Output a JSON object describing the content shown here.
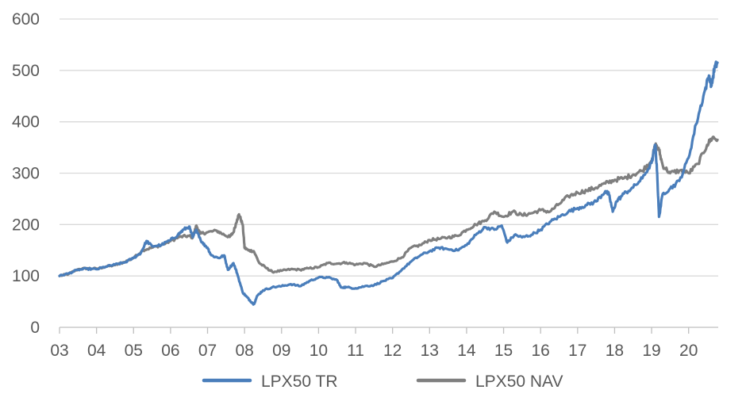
{
  "chart_data": {
    "type": "line",
    "title": "",
    "xlabel": "",
    "ylabel": "",
    "ylim": [
      0,
      600
    ],
    "yticks": [
      0,
      100,
      200,
      300,
      400,
      500,
      600
    ],
    "xlim": [
      2003,
      2020.8
    ],
    "xticks": [
      {
        "x": 2003,
        "label": "03"
      },
      {
        "x": 2004,
        "label": "04"
      },
      {
        "x": 2005,
        "label": "05"
      },
      {
        "x": 2006,
        "label": "06"
      },
      {
        "x": 2007,
        "label": "07"
      },
      {
        "x": 2008,
        "label": "08"
      },
      {
        "x": 2009,
        "label": "09"
      },
      {
        "x": 2010,
        "label": "10"
      },
      {
        "x": 2011,
        "label": "11"
      },
      {
        "x": 2012,
        "label": "12"
      },
      {
        "x": 2013,
        "label": "13"
      },
      {
        "x": 2014,
        "label": "14"
      },
      {
        "x": 2015,
        "label": "15"
      },
      {
        "x": 2016,
        "label": "16"
      },
      {
        "x": 2017,
        "label": "17"
      },
      {
        "x": 2018,
        "label": "18"
      },
      {
        "x": 2019,
        "label": "19"
      },
      {
        "x": 2020,
        "label": "20"
      }
    ],
    "grid": true,
    "legend": "bottom",
    "series": [
      {
        "name": "LPX50 TR",
        "color": "#4a7ebb",
        "points": [
          [
            2003.0,
            100
          ],
          [
            2003.25,
            105
          ],
          [
            2003.5,
            112
          ],
          [
            2003.75,
            114
          ],
          [
            2004.0,
            113
          ],
          [
            2004.25,
            118
          ],
          [
            2004.5,
            122
          ],
          [
            2004.75,
            126
          ],
          [
            2005.0,
            135
          ],
          [
            2005.2,
            145
          ],
          [
            2005.35,
            168
          ],
          [
            2005.5,
            158
          ],
          [
            2005.75,
            160
          ],
          [
            2006.0,
            170
          ],
          [
            2006.2,
            180
          ],
          [
            2006.35,
            190
          ],
          [
            2006.5,
            196
          ],
          [
            2006.6,
            175
          ],
          [
            2006.7,
            190
          ],
          [
            2006.85,
            165
          ],
          [
            2007.0,
            155
          ],
          [
            2007.1,
            140
          ],
          [
            2007.3,
            135
          ],
          [
            2007.45,
            140
          ],
          [
            2007.55,
            112
          ],
          [
            2007.7,
            125
          ],
          [
            2007.8,
            105
          ],
          [
            2007.95,
            68
          ],
          [
            2008.05,
            60
          ],
          [
            2008.15,
            52
          ],
          [
            2008.25,
            45
          ],
          [
            2008.35,
            62
          ],
          [
            2008.5,
            72
          ],
          [
            2008.75,
            78
          ],
          [
            2009.0,
            80
          ],
          [
            2009.25,
            84
          ],
          [
            2009.5,
            80
          ],
          [
            2009.75,
            90
          ],
          [
            2010.0,
            97
          ],
          [
            2010.25,
            97
          ],
          [
            2010.5,
            92
          ],
          [
            2010.6,
            78
          ],
          [
            2010.75,
            78
          ],
          [
            2011.0,
            76
          ],
          [
            2011.25,
            80
          ],
          [
            2011.5,
            82
          ],
          [
            2011.75,
            90
          ],
          [
            2012.0,
            96
          ],
          [
            2012.25,
            112
          ],
          [
            2012.5,
            128
          ],
          [
            2012.75,
            140
          ],
          [
            2013.0,
            148
          ],
          [
            2013.25,
            155
          ],
          [
            2013.5,
            152
          ],
          [
            2013.75,
            150
          ],
          [
            2014.0,
            160
          ],
          [
            2014.25,
            180
          ],
          [
            2014.5,
            195
          ],
          [
            2014.75,
            190
          ],
          [
            2014.95,
            198
          ],
          [
            2015.1,
            165
          ],
          [
            2015.3,
            180
          ],
          [
            2015.5,
            175
          ],
          [
            2015.75,
            180
          ],
          [
            2016.0,
            190
          ],
          [
            2016.25,
            205
          ],
          [
            2016.5,
            215
          ],
          [
            2016.75,
            225
          ],
          [
            2017.0,
            232
          ],
          [
            2017.25,
            238
          ],
          [
            2017.5,
            245
          ],
          [
            2017.75,
            265
          ],
          [
            2017.85,
            258
          ],
          [
            2017.95,
            225
          ],
          [
            2018.05,
            245
          ],
          [
            2018.25,
            260
          ],
          [
            2018.5,
            272
          ],
          [
            2018.75,
            290
          ],
          [
            2019.0,
            320
          ],
          [
            2019.1,
            355
          ],
          [
            2019.15,
            300
          ],
          [
            2019.2,
            215
          ],
          [
            2019.3,
            260
          ],
          [
            2019.5,
            270
          ],
          [
            2019.75,
            285
          ],
          [
            2020.0,
            330
          ],
          [
            2020.2,
            395
          ],
          [
            2020.4,
            450
          ],
          [
            2020.55,
            490
          ],
          [
            2020.62,
            470
          ],
          [
            2020.7,
            505
          ],
          [
            2020.78,
            515
          ]
        ]
      },
      {
        "name": "LPX50 NAV",
        "color": "#7f7f7f",
        "points": [
          [
            2003.0,
            100
          ],
          [
            2003.25,
            104
          ],
          [
            2003.5,
            113
          ],
          [
            2003.75,
            115
          ],
          [
            2004.0,
            114
          ],
          [
            2004.25,
            118
          ],
          [
            2004.5,
            121
          ],
          [
            2004.75,
            127
          ],
          [
            2005.0,
            135
          ],
          [
            2005.25,
            150
          ],
          [
            2005.5,
            155
          ],
          [
            2005.75,
            160
          ],
          [
            2006.0,
            168
          ],
          [
            2006.25,
            176
          ],
          [
            2006.5,
            178
          ],
          [
            2006.6,
            175
          ],
          [
            2006.7,
            198
          ],
          [
            2006.8,
            182
          ],
          [
            2007.0,
            185
          ],
          [
            2007.25,
            188
          ],
          [
            2007.45,
            180
          ],
          [
            2007.6,
            176
          ],
          [
            2007.7,
            185
          ],
          [
            2007.8,
            210
          ],
          [
            2007.85,
            220
          ],
          [
            2007.95,
            200
          ],
          [
            2008.0,
            155
          ],
          [
            2008.1,
            150
          ],
          [
            2008.25,
            148
          ],
          [
            2008.4,
            125
          ],
          [
            2008.6,
            115
          ],
          [
            2008.75,
            108
          ],
          [
            2009.0,
            110
          ],
          [
            2009.25,
            113
          ],
          [
            2009.5,
            112
          ],
          [
            2009.75,
            115
          ],
          [
            2010.0,
            117
          ],
          [
            2010.25,
            125
          ],
          [
            2010.5,
            124
          ],
          [
            2010.75,
            126
          ],
          [
            2011.0,
            122
          ],
          [
            2011.25,
            125
          ],
          [
            2011.5,
            118
          ],
          [
            2011.75,
            123
          ],
          [
            2012.0,
            128
          ],
          [
            2012.25,
            136
          ],
          [
            2012.5,
            155
          ],
          [
            2012.75,
            160
          ],
          [
            2013.0,
            170
          ],
          [
            2013.25,
            172
          ],
          [
            2013.5,
            175
          ],
          [
            2013.75,
            178
          ],
          [
            2014.0,
            190
          ],
          [
            2014.25,
            200
          ],
          [
            2014.5,
            208
          ],
          [
            2014.75,
            225
          ],
          [
            2015.0,
            215
          ],
          [
            2015.25,
            225
          ],
          [
            2015.5,
            218
          ],
          [
            2015.75,
            222
          ],
          [
            2016.0,
            228
          ],
          [
            2016.25,
            225
          ],
          [
            2016.5,
            240
          ],
          [
            2016.75,
            255
          ],
          [
            2017.0,
            262
          ],
          [
            2017.25,
            266
          ],
          [
            2017.5,
            272
          ],
          [
            2017.75,
            280
          ],
          [
            2018.0,
            287
          ],
          [
            2018.25,
            290
          ],
          [
            2018.5,
            297
          ],
          [
            2018.75,
            305
          ],
          [
            2019.0,
            325
          ],
          [
            2019.1,
            355
          ],
          [
            2019.2,
            345
          ],
          [
            2019.3,
            315
          ],
          [
            2019.5,
            300
          ],
          [
            2019.75,
            305
          ],
          [
            2020.0,
            300
          ],
          [
            2020.25,
            318
          ],
          [
            2020.5,
            355
          ],
          [
            2020.65,
            370
          ],
          [
            2020.78,
            365
          ]
        ]
      }
    ]
  }
}
